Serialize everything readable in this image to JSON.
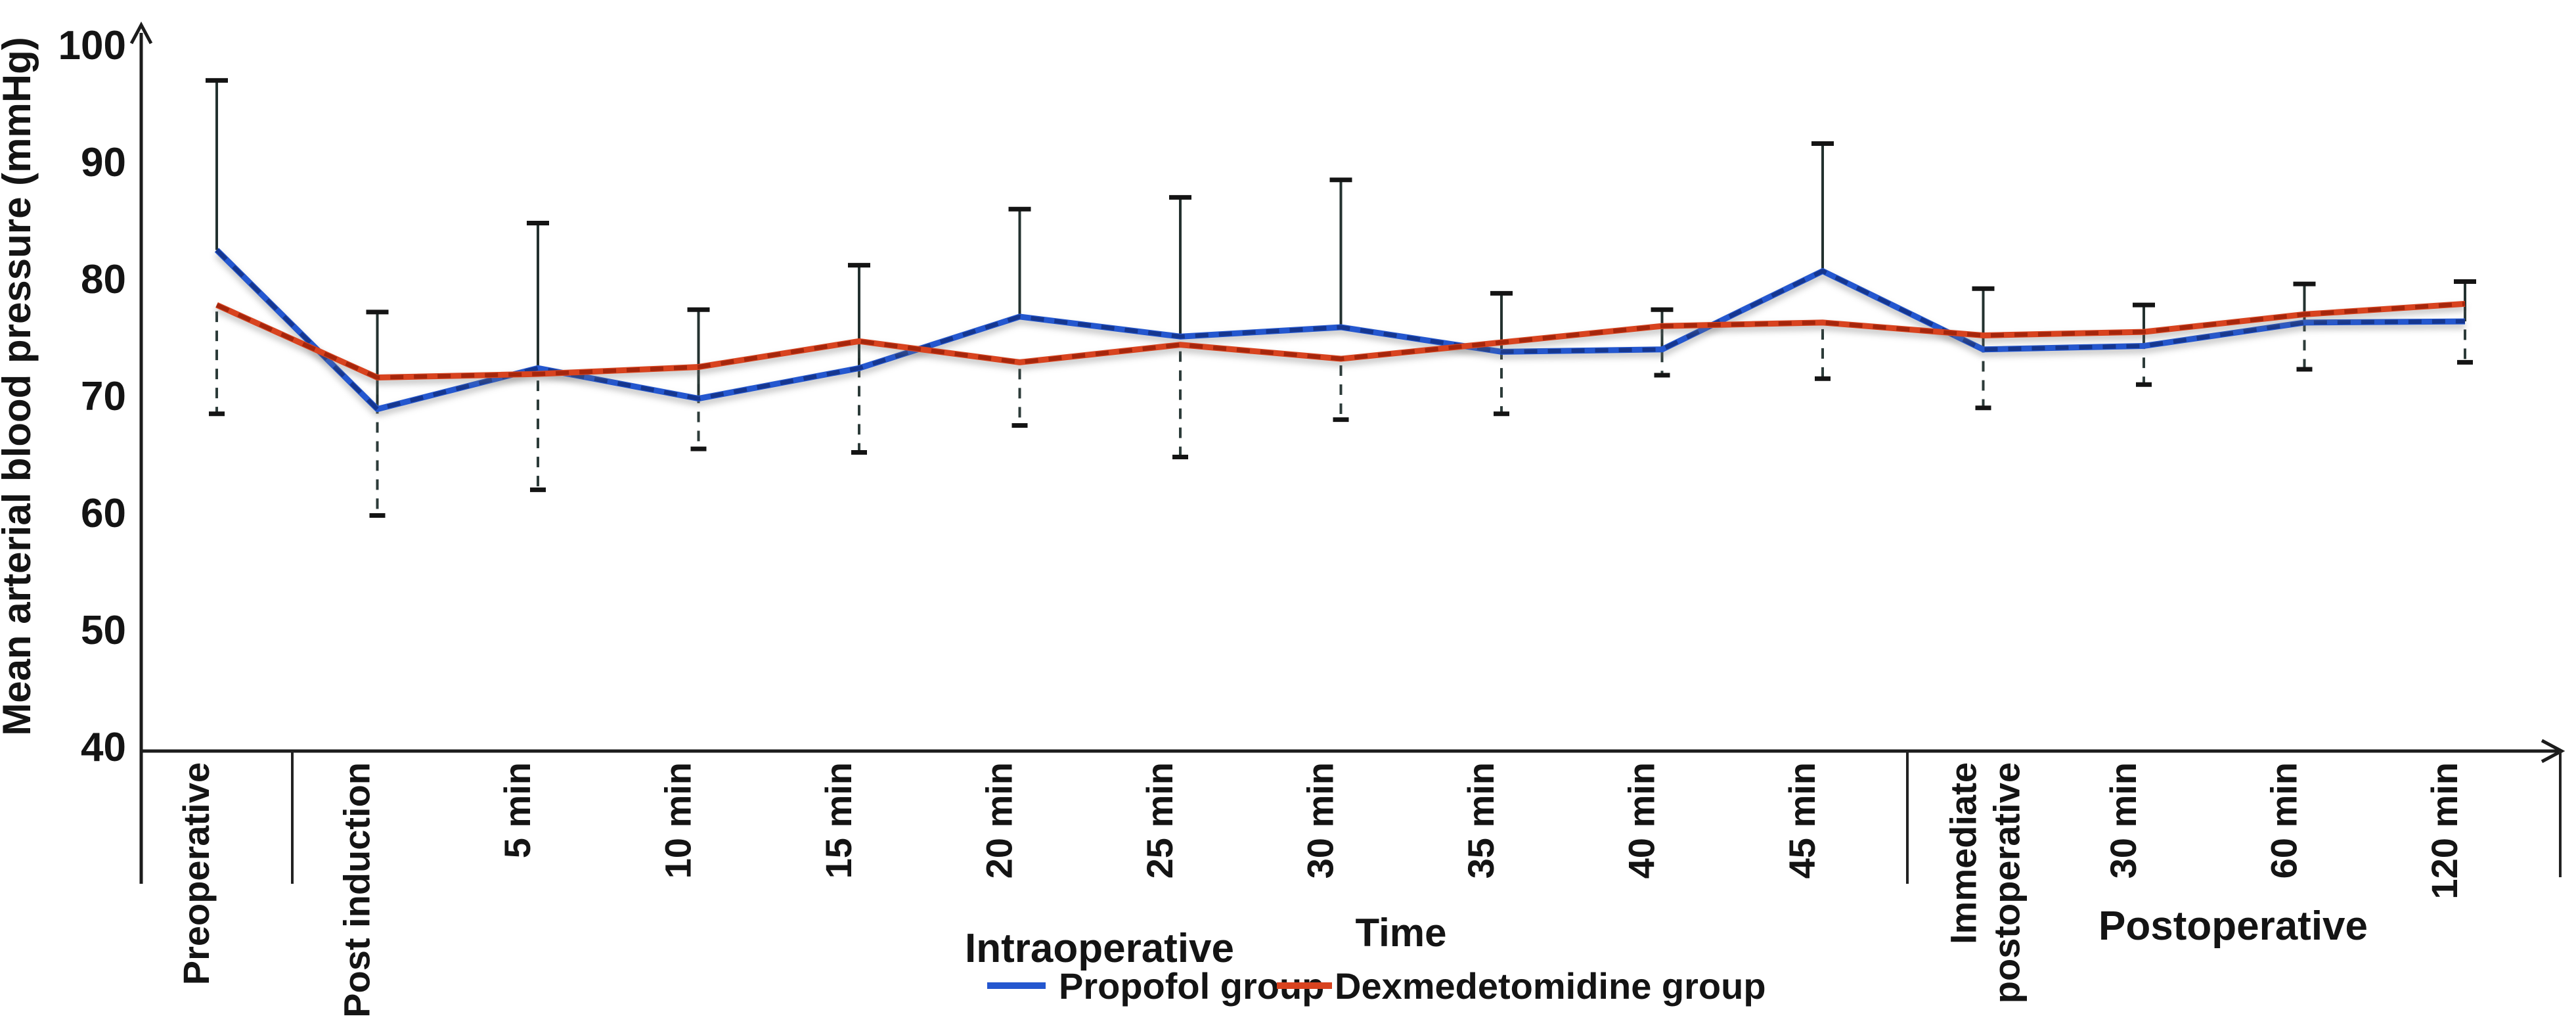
{
  "chart_data": {
    "type": "line",
    "title": "",
    "ylabel": "Mean arterial blood pressure (mmHg)",
    "xlabel": "Time",
    "ylim": [
      40,
      100
    ],
    "yticks": [
      40,
      50,
      60,
      70,
      80,
      90,
      100
    ],
    "grid": false,
    "legend_position": "bottom-center",
    "categories": [
      "Preoperative",
      "Post induction",
      "5 min",
      "10 min",
      "15 min",
      "20 min",
      "25 min",
      "30 min",
      "35 min",
      "40 min",
      "45 min",
      "Immediate\npostoperative",
      "30 min",
      "60 min",
      "120 min"
    ],
    "sections": [
      {
        "label": "Intraoperative",
        "start_category_index": 1,
        "end_category_index": 10
      },
      {
        "label": "Postoperative",
        "start_category_index": 11,
        "end_category_index": 14
      }
    ],
    "series": [
      {
        "name": "Propofol group",
        "color": "#2457cf",
        "dash_overlay_color": "#15368f",
        "values": [
          82.5,
          68.9,
          72.4,
          69.8,
          72.4,
          76.8,
          75.1,
          75.9,
          73.8,
          74,
          80.7,
          74,
          74.3,
          76.3,
          76.4
        ],
        "error_bar": {
          "direction": "up",
          "style": "solid",
          "tops": [
            97,
            77.2,
            84.8,
            77.4,
            81.2,
            86,
            87,
            88.5,
            78.8,
            77.4,
            91.6,
            79.2,
            77.8,
            79.6,
            79.8
          ]
        }
      },
      {
        "name": "Dexmedetomidine group",
        "color": "#d8431f",
        "dash_overlay_color": "#a5260c",
        "values": [
          77.8,
          71.6,
          71.9,
          72.5,
          74.7,
          72.9,
          74.4,
          73.2,
          74.6,
          76,
          76.3,
          75.2,
          75.5,
          77,
          77.9
        ],
        "error_bar": {
          "direction": "down",
          "style": "dashed",
          "bottoms": [
            68.5,
            59.8,
            62,
            65.5,
            65.2,
            67.5,
            64.8,
            68,
            68.5,
            71.8,
            71.5,
            69,
            71,
            72.3,
            72.9
          ]
        }
      }
    ]
  }
}
